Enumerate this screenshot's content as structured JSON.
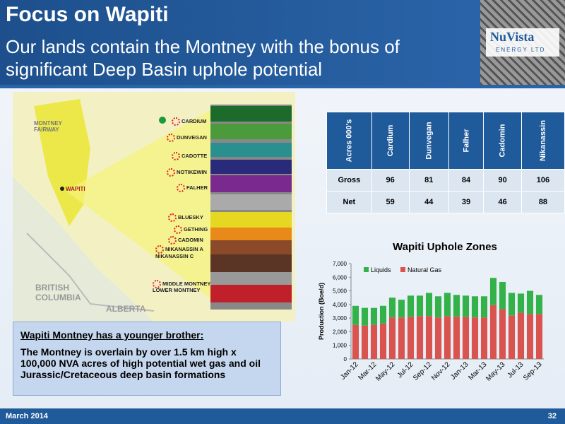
{
  "header": {
    "title": "Focus on Wapiti",
    "subtitle": "Our lands contain the Montney with the bonus of significant Deep Basin uphole potential",
    "logo": "NuVista",
    "logo_sub": "ENERGY LTD"
  },
  "map": {
    "labels": [
      "MONTNEY FAIRWAY",
      "WAPITI",
      "BRITISH COLUMBIA",
      "ALBERTA"
    ],
    "formations": [
      "CARDIUM",
      "DUNVEGAN",
      "CADOTTE",
      "NOTIKEWIN",
      "FALHER",
      "BLUESKY",
      "GETHING",
      "CADOMIN",
      "NIKANASSIN A",
      "NIKANASSIN C",
      "MIDDLE MONTNEY",
      "LOWER MONTNEY"
    ]
  },
  "table": {
    "header": [
      "Acres 000's",
      "Cardium",
      "Dunvegan",
      "Falher",
      "Cadomin",
      "Nikanassin"
    ],
    "rows": [
      [
        "Gross",
        "96",
        "81",
        "84",
        "90",
        "106"
      ],
      [
        "Net",
        "59",
        "44",
        "39",
        "46",
        "88"
      ]
    ]
  },
  "chart_data": {
    "type": "stacked_bar",
    "title": "Wapiti Uphole Zones",
    "y_label": "Production (Boe/d)",
    "categories": [
      "Jan-12",
      null,
      "Mar-12",
      null,
      "May-12",
      null,
      "Jul-12",
      null,
      "Sep-12",
      null,
      "Nov-12",
      null,
      "Jan-13",
      null,
      "Mar-13",
      null,
      "May-13",
      null,
      "Jul-13",
      null,
      "Sep-13"
    ],
    "series": [
      {
        "name": "Liquids",
        "color": "#33b24a",
        "values": [
          1400,
          1300,
          1250,
          1300,
          1450,
          1300,
          1550,
          1500,
          1700,
          1550,
          1700,
          1600,
          1550,
          1550,
          1550,
          2000,
          2000,
          1650,
          1400,
          1700,
          1400
        ]
      },
      {
        "name": "Natural Gas",
        "color": "#d9534f",
        "values": [
          2500,
          2450,
          2500,
          2600,
          3050,
          3050,
          3100,
          3150,
          3150,
          3050,
          3150,
          3100,
          3100,
          3050,
          3050,
          3950,
          3650,
          3200,
          3400,
          3300,
          3300
        ]
      }
    ],
    "ylim": [
      0,
      7000
    ],
    "yticks": [
      0,
      {
        "value": 1000,
        "label": "1,000"
      },
      {
        "value": 2000,
        "label": "2,000"
      },
      {
        "value": 3000,
        "label": "3,000"
      },
      {
        "value": 4000,
        "label": "4,000"
      },
      {
        "value": 5000,
        "label": "5,000"
      },
      {
        "value": 6000,
        "label": "6,000"
      },
      {
        "value": 7000,
        "label": "7,000"
      }
    ],
    "legend": "top-left"
  },
  "callout": {
    "heading": "Wapiti Montney has a younger brother:",
    "body": "The Montney is overlain by over 1.5 km high x 100,000 NVA acres of high potential wet gas and oil Jurassic/Cretaceous deep basin formations"
  },
  "footer": {
    "date": "March 2014",
    "page": "32"
  }
}
